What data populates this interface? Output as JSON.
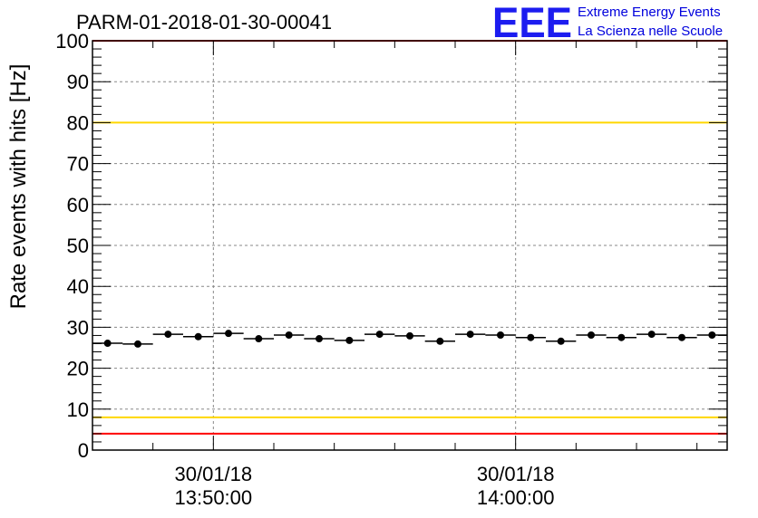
{
  "title": "PARM-01-2018-01-30-00041",
  "logo": {
    "mark": "EEE",
    "line1": "Extreme Energy Events",
    "line2": "La Scienza nelle Scuole",
    "color": "#1c1cf0"
  },
  "chart_data": {
    "type": "scatter",
    "title": "PARM-01-2018-01-30-00041",
    "ylabel": "Rate events with hits [Hz]",
    "xlabel": "",
    "ylim": [
      0,
      100
    ],
    "xlim": [
      "13:46:00",
      "14:07:00"
    ],
    "yticks": [
      "0",
      "10",
      "20",
      "30",
      "40",
      "50",
      "60",
      "70",
      "80",
      "90",
      "100"
    ],
    "xticks": [
      {
        "date": "30/01/18",
        "time": "13:50:00"
      },
      {
        "date": "30/01/18",
        "time": "14:00:00"
      }
    ],
    "grid": true,
    "series": [
      {
        "marker": "circle",
        "color": "#000000",
        "bin_width_s": 60,
        "x": [
          "13:46:30",
          "13:47:30",
          "13:48:30",
          "13:49:30",
          "13:50:30",
          "13:51:30",
          "13:52:30",
          "13:53:30",
          "13:54:30",
          "13:55:30",
          "13:56:30",
          "13:57:30",
          "13:58:30",
          "13:59:30",
          "14:00:30",
          "14:01:30",
          "14:02:30",
          "14:03:30",
          "14:04:30",
          "14:05:30",
          "14:06:30"
        ],
        "values": [
          26.1,
          25.9,
          28.3,
          27.7,
          28.5,
          27.2,
          28.1,
          27.2,
          26.8,
          28.3,
          27.9,
          26.6,
          28.3,
          28.1,
          27.5,
          26.6,
          28.1,
          27.5,
          28.3,
          27.5,
          28.1
        ]
      }
    ],
    "reference_lines": [
      {
        "value": 100,
        "color": "#ff0000"
      },
      {
        "value": 80,
        "color": "#ffd700"
      },
      {
        "value": 8,
        "color": "#ffd700"
      },
      {
        "value": 4,
        "color": "#ff0000"
      }
    ]
  }
}
